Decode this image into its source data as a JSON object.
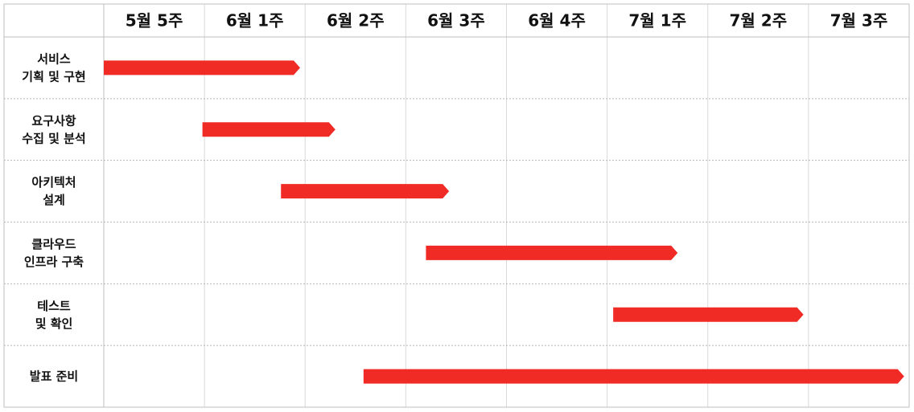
{
  "chart_data": {
    "type": "gantt",
    "title": "",
    "weeks": [
      "5월 5주",
      "6월 1주",
      "6월 2주",
      "6월 3주",
      "6월 4주",
      "7월 1주",
      "7월 2주",
      "7월 3주"
    ],
    "tasks": [
      {
        "label": [
          "서비스",
          "기획 및 구현"
        ],
        "start": 0.0,
        "end": 1.95
      },
      {
        "label": [
          "요구사항",
          "수집 및 분석"
        ],
        "start": 0.98,
        "end": 2.3
      },
      {
        "label": [
          "아키텍처",
          "설계"
        ],
        "start": 1.76,
        "end": 3.43
      },
      {
        "label": [
          "클라우드",
          "인프라 구축"
        ],
        "start": 3.2,
        "end": 5.7
      },
      {
        "label": [
          "테스트",
          "및 확인"
        ],
        "start": 5.06,
        "end": 6.95
      },
      {
        "label": [
          "발표 준비"
        ],
        "start": 2.58,
        "end": 7.95
      }
    ],
    "colors": {
      "bar": "#f02b26",
      "border": "#bfbfbf",
      "grid": "#d9d9d9",
      "text": "#111111"
    }
  }
}
